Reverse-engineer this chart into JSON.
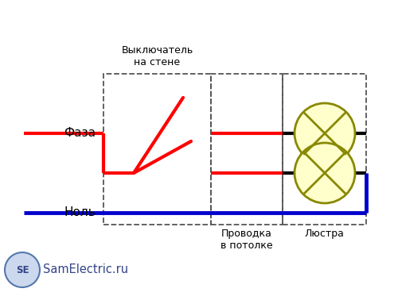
{
  "bg_color": "#ffffff",
  "phase_color": "#ff0000",
  "null_color": "#0000cc",
  "wire_color": "#000000",
  "lamp_fill": "#ffffcc",
  "lamp_edge": "#888800",
  "dashed_color": "#555555",
  "text_color": "#000000",
  "label_faza": "Фаза",
  "label_nol": "Ноль",
  "label_switch": "Выключатель\nна стене",
  "label_provodka": "Проводка\nв потолке",
  "label_lyustra": "Люстра",
  "label_site": "SamElectric.ru",
  "line_width": 3.0
}
